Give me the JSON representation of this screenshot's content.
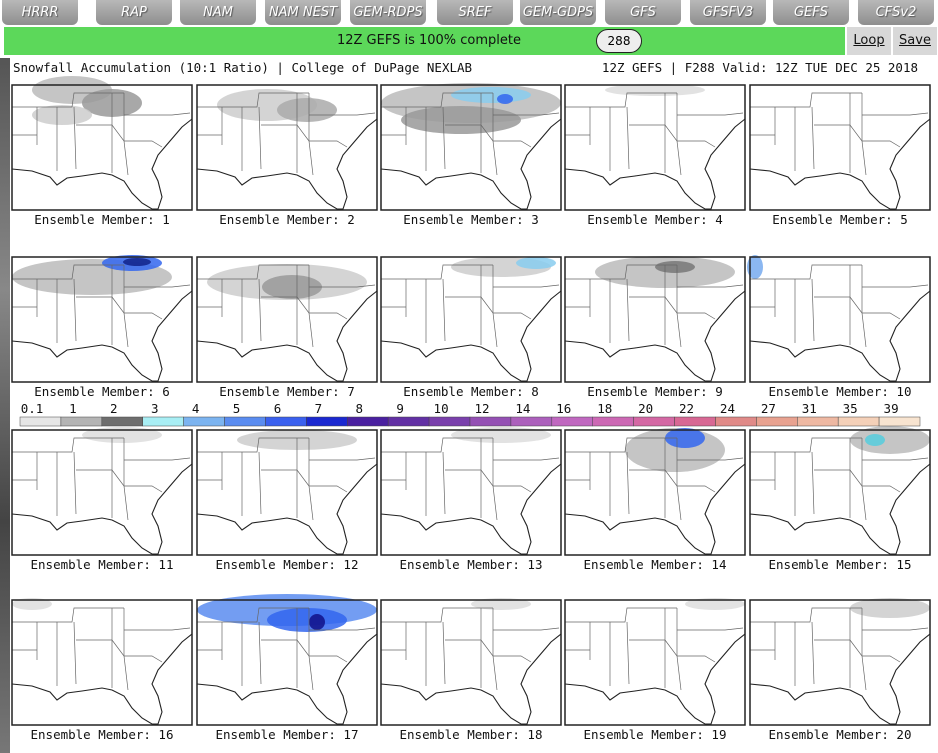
{
  "tabs": [
    "HRRR",
    "RAP",
    "NAM",
    "NAM NEST",
    "GEM-RDPS",
    "SREF",
    "GEM-GDPS",
    "GFS",
    "GFSFV3",
    "GEFS",
    "CFSv2"
  ],
  "status": {
    "message": "12Z GEFS is 100% complete",
    "hour": "288",
    "loop": "Loop",
    "save": "Save"
  },
  "image": {
    "title": "Snowfall Accumulation (10:1 Ratio) | College of DuPage NEXLAB",
    "valid": "12Z GEFS | F288 Valid: 12Z TUE DEC 25 2018"
  },
  "panels": [
    "Ensemble Member: 1",
    "Ensemble Member: 2",
    "Ensemble Member: 3",
    "Ensemble Member: 4",
    "Ensemble Member: 5",
    "Ensemble Member: 6",
    "Ensemble Member: 7",
    "Ensemble Member: 8",
    "Ensemble Member: 9",
    "Ensemble Member: 10",
    "Ensemble Member: 11",
    "Ensemble Member: 12",
    "Ensemble Member: 13",
    "Ensemble Member: 14",
    "Ensemble Member: 15",
    "Ensemble Member: 16",
    "Ensemble Member: 17",
    "Ensemble Member: 18",
    "Ensemble Member: 19",
    "Ensemble Member: 20"
  ],
  "colorbar": {
    "labels": [
      0.1,
      1,
      2,
      3,
      4,
      5,
      6,
      7,
      8,
      9,
      10,
      12,
      14,
      16,
      18,
      20,
      22,
      24,
      27,
      31,
      35,
      39
    ],
    "colors": [
      "#e6e6e6",
      "#b4b4b4",
      "#6e6e6e",
      "#a8eef4",
      "#7cb4f0",
      "#5a8cf0",
      "#3a60ee",
      "#1a28d0",
      "#4a20a0",
      "#6230a4",
      "#7a40ac",
      "#9450b4",
      "#ac60bc",
      "#c068c0",
      "#cc68b4",
      "#d468a4",
      "#d86894",
      "#e08a88",
      "#e8a290",
      "#eeb8a2",
      "#f4d0b8",
      "#f8e4d0"
    ]
  }
}
